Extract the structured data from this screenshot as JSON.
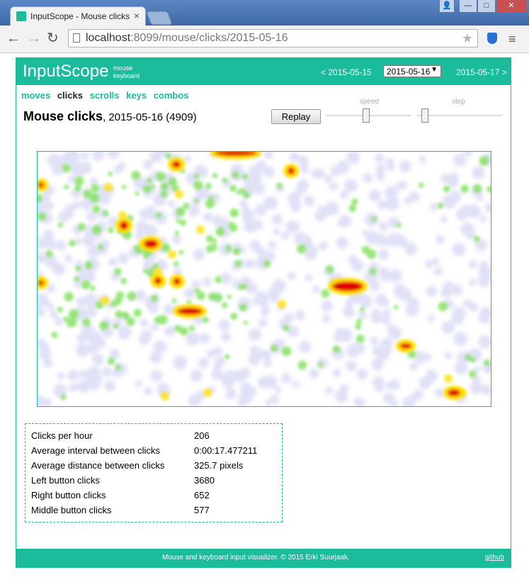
{
  "browser": {
    "tab_title": "InputScope - Mouse clicks",
    "url_host": "localhost",
    "url_rest": ":8099/mouse/clicks/2015-05-16"
  },
  "app": {
    "brand": "InputScope",
    "sub_links": [
      "mouse",
      "keyboard"
    ],
    "prev_date": "< 2015-05-15",
    "current_date": "2015-05-16",
    "next_date": "2015-05-17 >",
    "tabs": [
      {
        "label": "moves",
        "active": false
      },
      {
        "label": "clicks",
        "active": true
      },
      {
        "label": "scrolls",
        "active": false
      },
      {
        "label": "keys",
        "active": false
      },
      {
        "label": "combos",
        "active": false
      }
    ],
    "title_strong": "Mouse clicks",
    "title_rest": ", 2015-05-16 (4909)",
    "replay_label": "Replay",
    "speed_label": "speed",
    "step_label": "step",
    "speed_value": 0.47,
    "step_value": 0.05
  },
  "stats": [
    {
      "label": "Clicks per hour",
      "value": "206"
    },
    {
      "label": "Average interval between clicks",
      "value": "0:00:17.477211"
    },
    {
      "label": "Average distance between clicks",
      "value": "325.7 pixels"
    },
    {
      "label": "Left button clicks",
      "value": "3680"
    },
    {
      "label": "Right button clicks",
      "value": "652"
    },
    {
      "label": "Middle button clicks",
      "value": "577"
    }
  ],
  "footer": {
    "text": "Mouse and keyboard input visualizer. © 2015 Erki Suurjaak.",
    "link": "github"
  },
  "colors": {
    "accent": "#1abc9c",
    "heat_low": "#c8c8f0",
    "heat_mid": "#7fe05a",
    "heat_high": "#ffe000",
    "heat_max": "#e00000"
  }
}
